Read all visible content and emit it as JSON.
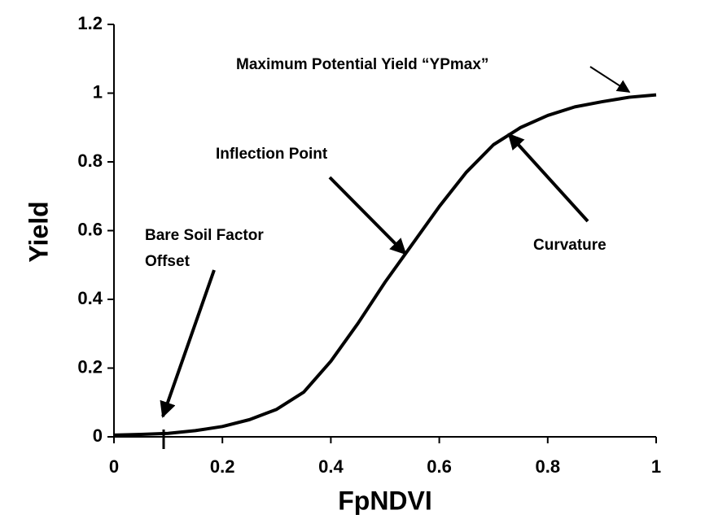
{
  "chart_data": {
    "type": "line",
    "x_label": "FpNDVI",
    "y_label": "Yield",
    "x": [
      0,
      0.05,
      0.1,
      0.15,
      0.2,
      0.25,
      0.3,
      0.35,
      0.4,
      0.45,
      0.5,
      0.55,
      0.6,
      0.65,
      0.7,
      0.75,
      0.8,
      0.85,
      0.9,
      0.95,
      1
    ],
    "values": [
      0.005,
      0.007,
      0.01,
      0.018,
      0.03,
      0.05,
      0.08,
      0.13,
      0.22,
      0.33,
      0.45,
      0.56,
      0.67,
      0.77,
      0.85,
      0.9,
      0.935,
      0.96,
      0.975,
      0.988,
      0.995
    ],
    "color": "#000000",
    "xlim": [
      0,
      1
    ],
    "xticks": [
      0,
      0.2,
      0.4,
      0.6,
      0.8,
      1
    ],
    "ylim": [
      0,
      1.2
    ],
    "yticks": [
      0,
      0.2,
      0.4,
      0.6,
      0.8,
      1,
      1.2
    ],
    "grid": false,
    "annotations": [
      "Maximum Potential Yield “YPmax”",
      "Inflection Point",
      "Bare Soil Factor",
      "Offset",
      "Curvature"
    ]
  }
}
